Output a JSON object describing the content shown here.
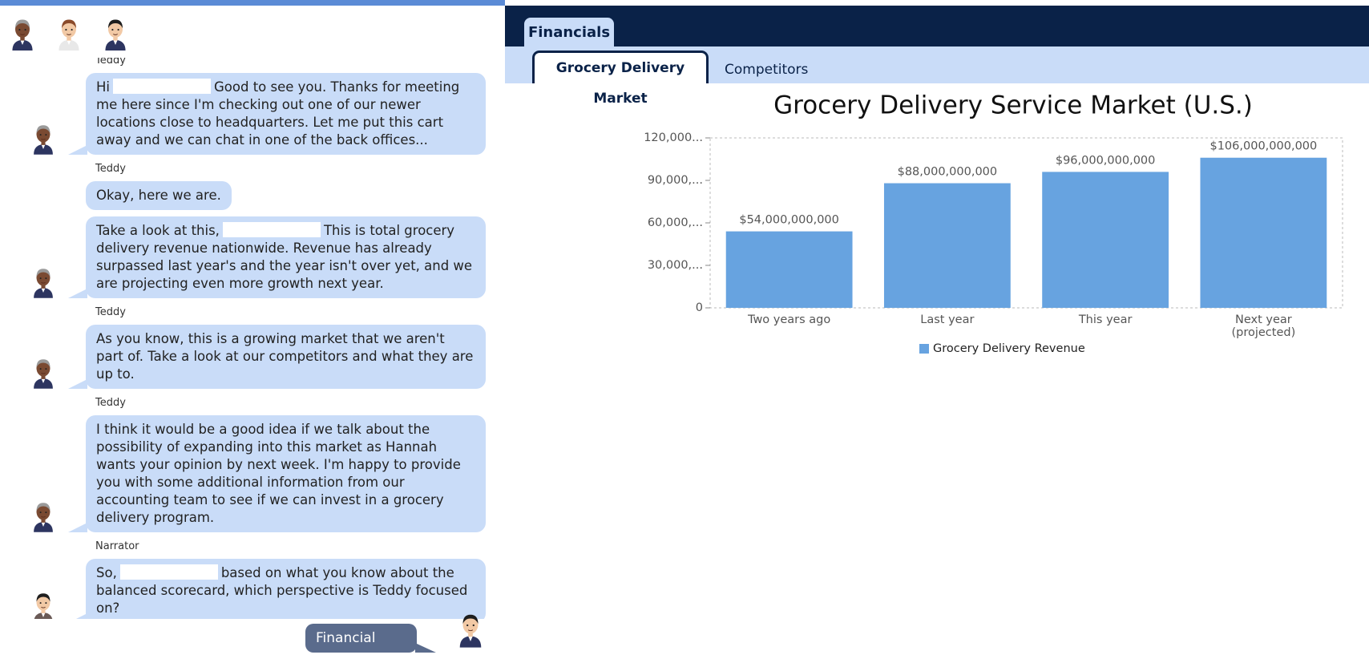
{
  "chat": {
    "messages": [
      {
        "speaker": "Teddy",
        "text": [
          "Hi",
          "Good to see you. Thanks for meeting me here since I'm checking out one of our newer locations close to headquarters. Let me put this cart away and we can chat in one of the back offices..."
        ]
      },
      {
        "speaker": "Teddy",
        "text": [
          "Okay, here we are."
        ]
      },
      {
        "text": [
          "Take a look at this,",
          "This is total grocery delivery revenue nationwide. Revenue has already surpassed last year's and the year isn't over yet, and we are projecting even more growth next year."
        ]
      },
      {
        "speaker": "Teddy",
        "text": [
          "As you know, this is a growing market that we aren't part of. Take a look at our competitors and what they are up to."
        ]
      },
      {
        "speaker": "Teddy",
        "text": [
          "I think it would be a good idea if we talk about the possibility of expanding into this market as Hannah wants your opinion by next week. I'm happy to provide you with some additional information from our accounting team to see if we can invest in a grocery delivery program."
        ]
      },
      {
        "speaker": "Narrator",
        "text": [
          "So,",
          "based on what you know about the balanced scorecard, which perspective is Teddy focused on?"
        ]
      }
    ],
    "reply": "Financial"
  },
  "tabs": [
    "Financials"
  ],
  "subtabs": [
    "Grocery Delivery Market",
    "Competitors"
  ],
  "chart_data": {
    "type": "bar",
    "title": "Grocery Delivery Service Market (U.S.)",
    "categories": [
      "Two years ago",
      "Last year",
      "This year",
      "Next year (projected)"
    ],
    "series": [
      {
        "name": "Grocery Delivery Revenue",
        "color": "#67a3e0",
        "values": [
          54000000000,
          88000000000,
          96000000000,
          106000000000
        ],
        "value_labels": [
          "$54,000,000,000",
          "$88,000,000,000",
          "$96,000,000,000",
          "$106,000,000,000"
        ]
      }
    ],
    "ylim": [
      0,
      120000000000
    ],
    "yticks": [
      0,
      {
        "value": 30000000000,
        "label": "30,000,..."
      },
      {
        "value": 60000000000,
        "label": "60,000,..."
      },
      {
        "value": 90000000000,
        "label": "90,000,..."
      },
      {
        "value": 120000000000,
        "label": "120,000..."
      }
    ],
    "grid": false,
    "legend": "bottom"
  }
}
